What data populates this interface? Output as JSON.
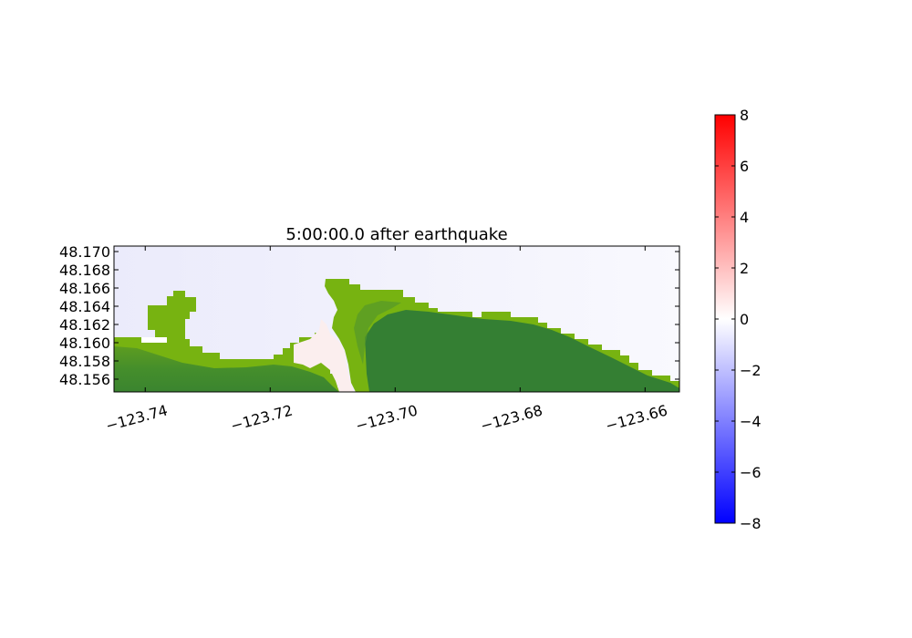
{
  "chart_data": {
    "type": "heatmap",
    "title": "5:00:00.0 after earthquake",
    "xlabel": "",
    "ylabel": "",
    "xlim": [
      -123.745,
      -123.6545
    ],
    "ylim": [
      48.1546,
      48.1706
    ],
    "x_ticks": [
      -123.74,
      -123.72,
      -123.7,
      -123.68,
      -123.66
    ],
    "x_tick_labels": [
      "−123.74",
      "−123.72",
      "−123.70",
      "−123.68",
      "−123.66"
    ],
    "y_ticks": [
      48.156,
      48.158,
      48.16,
      48.162,
      48.164,
      48.166,
      48.168,
      48.17
    ],
    "y_tick_labels": [
      "48.156",
      "48.158",
      "48.160",
      "48.162",
      "48.164",
      "48.166",
      "48.168",
      "48.170"
    ],
    "colorbar": {
      "range": [
        -8,
        8
      ],
      "ticks": [
        -8,
        -6,
        -4,
        -2,
        0,
        2,
        4,
        6,
        8
      ],
      "tick_labels": [
        "−8",
        "−6",
        "−4",
        "−2",
        "0",
        "2",
        "4",
        "6",
        "8"
      ],
      "colors": {
        "min": "#0000ff",
        "mid": "#ffffff",
        "max": "#ff0000"
      }
    },
    "colors": {
      "water": "#eeeefb",
      "land_light": "#77b311",
      "land_dark": "#347f33",
      "inundation": "#fbeeee"
    },
    "grid": false,
    "legend": "colorbar right"
  }
}
